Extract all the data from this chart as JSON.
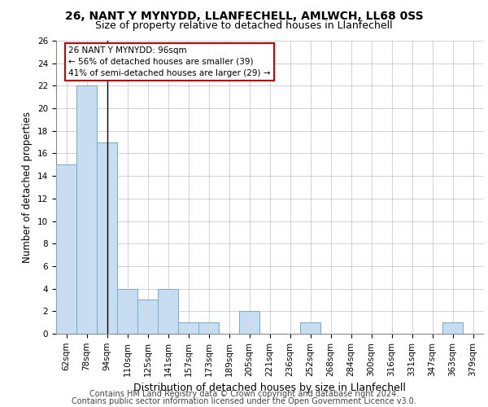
{
  "title1": "26, NANT Y MYNYDD, LLANFECHELL, AMLWCH, LL68 0SS",
  "title2": "Size of property relative to detached houses in Llanfechell",
  "xlabel": "Distribution of detached houses by size in Llanfechell",
  "ylabel": "Number of detached properties",
  "categories": [
    "62sqm",
    "78sqm",
    "94sqm",
    "110sqm",
    "125sqm",
    "141sqm",
    "157sqm",
    "173sqm",
    "189sqm",
    "205sqm",
    "221sqm",
    "236sqm",
    "252sqm",
    "268sqm",
    "284sqm",
    "300sqm",
    "316sqm",
    "331sqm",
    "347sqm",
    "363sqm",
    "379sqm"
  ],
  "values": [
    15,
    22,
    17,
    4,
    3,
    4,
    1,
    1,
    0,
    2,
    0,
    0,
    1,
    0,
    0,
    0,
    0,
    0,
    0,
    1,
    0
  ],
  "bar_color": "#c8ddf0",
  "bar_edge_color": "#6baed6",
  "annotation_bar_index": 2,
  "annotation_text_line1": "26 NANT Y MYNYDD: 96sqm",
  "annotation_text_line2": "← 56% of detached houses are smaller (39)",
  "annotation_text_line3": "41% of semi-detached houses are larger (29) →",
  "annotation_box_color": "#ffffff",
  "annotation_box_edge_color": "#cc0000",
  "vline_color": "#000000",
  "ylim_max": 26,
  "yticks": [
    0,
    2,
    4,
    6,
    8,
    10,
    12,
    14,
    16,
    18,
    20,
    22,
    24,
    26
  ],
  "footer1": "Contains HM Land Registry data © Crown copyright and database right 2024.",
  "footer2": "Contains public sector information licensed under the Open Government Licence v3.0.",
  "title1_fontsize": 10,
  "title2_fontsize": 9,
  "xlabel_fontsize": 9,
  "ylabel_fontsize": 8.5,
  "tick_fontsize": 7.5,
  "annotation_fontsize": 7.5,
  "footer_fontsize": 7
}
